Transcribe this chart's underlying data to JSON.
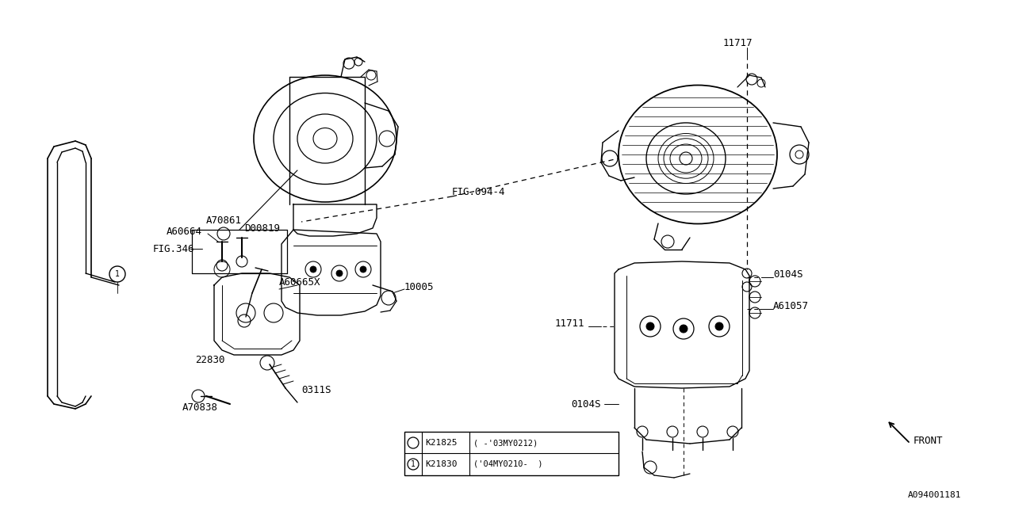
{
  "bg_color": "#ffffff",
  "fig_number": "A094001181",
  "labels": {
    "FIG346": "FIG.346",
    "FIG094": "FIG.094-4",
    "A60664": "A60664",
    "D00819": "D00819",
    "A70861": "A70861",
    "A60665X": "A60665X",
    "10005": "10005",
    "22830": "22830",
    "0311S": "0311S",
    "A70838": "A70838",
    "11717": "11717",
    "A61057": "A61057",
    "11711": "11711",
    "0104S_r": "0104S",
    "0104S_b": "0104S",
    "FRONT": "FRONT",
    "K21825": "K21825",
    "K21830": "K21830",
    "K21825v": "( -'03MY0212)",
    "K21830v": "('04MY0210-  )"
  }
}
